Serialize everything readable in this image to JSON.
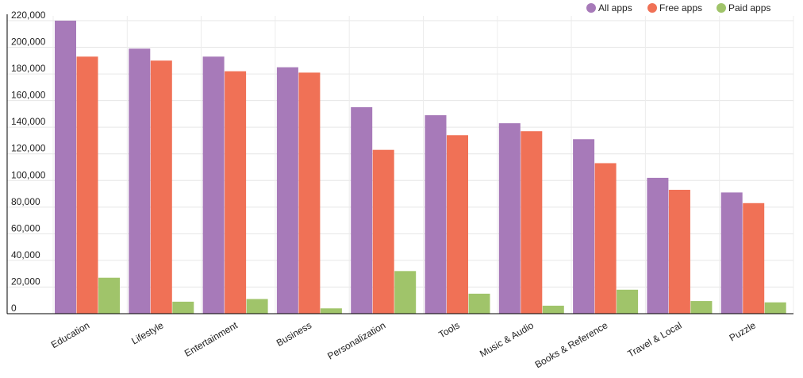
{
  "chart_data": {
    "type": "bar",
    "title": "",
    "xlabel": "",
    "ylabel": "",
    "categories": [
      "Education",
      "Lifestyle",
      "Entertainment",
      "Business",
      "Personalization",
      "Tools",
      "Music & Audio",
      "Books & Reference",
      "Travel & Local",
      "Puzzle"
    ],
    "series": [
      {
        "name": "All apps",
        "color": "#a77ab9",
        "values": [
          220000,
          199000,
          193000,
          185000,
          155000,
          149000,
          143000,
          131000,
          102000,
          91000
        ]
      },
      {
        "name": "Free apps",
        "color": "#f07156",
        "values": [
          193000,
          190000,
          182000,
          181000,
          123000,
          134000,
          137000,
          113000,
          93000,
          83000
        ]
      },
      {
        "name": "Paid apps",
        "color": "#a0c46a",
        "values": [
          27000,
          9000,
          11000,
          4000,
          32000,
          15000,
          6000,
          18000,
          9500,
          8500
        ]
      }
    ],
    "ylim": [
      0,
      220000
    ],
    "yticks": [
      0,
      20000,
      40000,
      60000,
      80000,
      100000,
      120000,
      140000,
      160000,
      180000,
      200000,
      220000
    ],
    "ytick_labels": [
      "0",
      "20,000",
      "40,000",
      "60,000",
      "80,000",
      "100,000",
      "120,000",
      "140,000",
      "160,000",
      "180,000",
      "200,000",
      "220,000"
    ],
    "grid": true,
    "legend_position": "top-right"
  }
}
